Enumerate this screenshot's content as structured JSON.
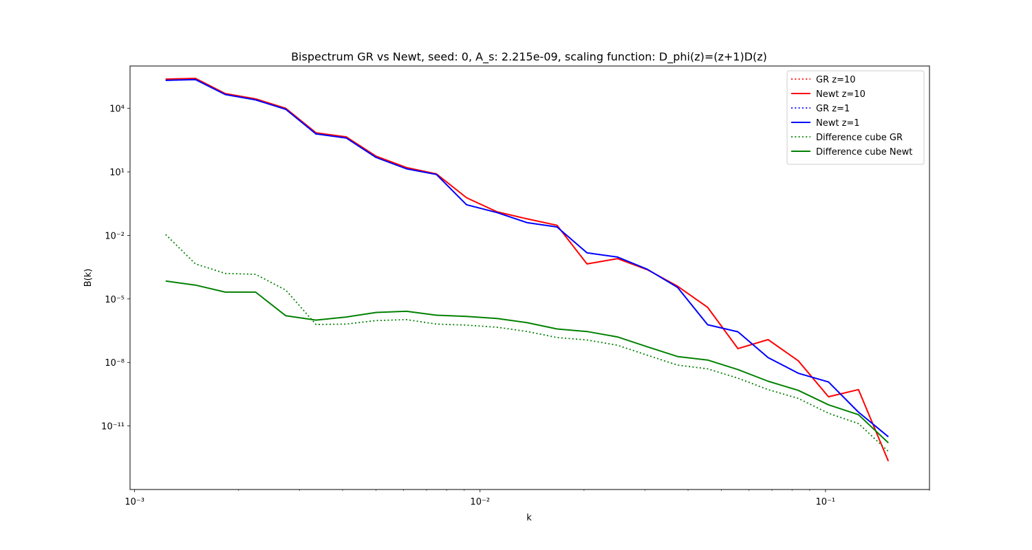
{
  "chart_data": {
    "type": "line",
    "title": "Bispectrum GR vs Newt, seed: 0, A_s: 2.215e-09, scaling function: D_phi(z)=(z+1)D(z)",
    "xlabel": "k",
    "ylabel": "B(k)",
    "xscale": "log",
    "yscale": "log",
    "xlim": [
      0.00097,
      0.2
    ],
    "ylim": [
      1e-14,
      1000000.0
    ],
    "grid": false,
    "legend_position": "top-right",
    "x_ticks": [
      {
        "value": 0.001,
        "label": "10⁻³"
      },
      {
        "value": 0.01,
        "label": "10⁻²"
      },
      {
        "value": 0.1,
        "label": "10⁻¹"
      }
    ],
    "y_ticks": [
      {
        "value": 10000.0,
        "label": "10⁴"
      },
      {
        "value": 10.0,
        "label": "10¹"
      },
      {
        "value": 0.01,
        "label": "10⁻²"
      },
      {
        "value": 1e-05,
        "label": "10⁻⁵"
      },
      {
        "value": 1e-08,
        "label": "10⁻⁸"
      },
      {
        "value": 1e-11,
        "label": "10⁻¹¹"
      }
    ],
    "x": [
      0.00123,
      0.0015,
      0.00183,
      0.00224,
      0.00274,
      0.00335,
      0.0041,
      0.005,
      0.00612,
      0.00748,
      0.00914,
      0.0112,
      0.0137,
      0.0167,
      0.0204,
      0.025,
      0.0305,
      0.0373,
      0.0456,
      0.0558,
      0.0682,
      0.0834,
      0.102,
      0.1246,
      0.152
    ],
    "series": [
      {
        "name": "GR z=10",
        "color": "#ff0000",
        "style": "dotted",
        "values": [
          240000.0,
          260000.0,
          50000.0,
          28000.0,
          10000.0,
          700,
          450,
          55,
          16,
          8,
          0.6,
          0.13,
          0.06,
          0.03,
          0.00045,
          0.0008,
          0.00024,
          4e-05,
          4e-06,
          4.5e-08,
          1.2e-07,
          1.2e-08,
          2.4e-10,
          5.2e-10,
          2.2e-13
        ]
      },
      {
        "name": "Newt z=10",
        "color": "#ff0000",
        "style": "solid",
        "values": [
          240000.0,
          260000.0,
          50000.0,
          28000.0,
          10000.0,
          700,
          450,
          55,
          16,
          8,
          0.6,
          0.13,
          0.06,
          0.03,
          0.00045,
          0.0008,
          0.00024,
          4e-05,
          4e-06,
          4.5e-08,
          1.2e-07,
          1.2e-08,
          2.4e-10,
          5.2e-10,
          2.2e-13
        ]
      },
      {
        "name": "GR z=1",
        "color": "#0000ff",
        "style": "dotted",
        "values": [
          210000.0,
          230000.0,
          45000.0,
          25000.0,
          9000.0,
          620,
          400,
          48,
          14,
          7.5,
          0.28,
          0.12,
          0.04,
          0.025,
          0.0015,
          0.00095,
          0.00025,
          3.5e-05,
          6e-07,
          2.8e-07,
          1.7e-08,
          3.1e-09,
          1.2e-09,
          4.5e-11,
          3.1e-12
        ]
      },
      {
        "name": "Newt z=1",
        "color": "#0000ff",
        "style": "solid",
        "values": [
          210000.0,
          230000.0,
          45000.0,
          25000.0,
          9000.0,
          620,
          400,
          48,
          14,
          7.5,
          0.28,
          0.12,
          0.04,
          0.025,
          0.0015,
          0.00095,
          0.00025,
          3.5e-05,
          6e-07,
          2.8e-07,
          1.7e-08,
          3.1e-09,
          1.2e-09,
          4.5e-11,
          3.1e-12
        ]
      },
      {
        "name": "Difference cube GR",
        "color": "#008000",
        "style": "dotted",
        "values": [
          0.011,
          0.00045,
          0.00016,
          0.000145,
          2.6e-05,
          6.2e-07,
          6.5e-07,
          9.5e-07,
          1.05e-06,
          6.5e-07,
          5.8e-07,
          4.6e-07,
          2.9e-07,
          1.5e-07,
          1.15e-07,
          6.5e-08,
          2.2e-08,
          7.5e-09,
          5e-09,
          1.8e-09,
          5.2e-10,
          2e-10,
          4e-11,
          1.3e-11,
          6.3e-13
        ]
      },
      {
        "name": "Difference cube Newt",
        "color": "#008000",
        "style": "solid",
        "values": [
          7e-05,
          4.5e-05,
          2.1e-05,
          2.1e-05,
          1.6e-06,
          1e-06,
          1.4e-06,
          2.3e-06,
          2.6e-06,
          1.7e-06,
          1.5e-06,
          1.2e-06,
          7.5e-07,
          3.8e-07,
          2.9e-07,
          1.6e-07,
          5.5e-08,
          1.9e-08,
          1.3e-08,
          4.6e-09,
          1.3e-09,
          4.8e-10,
          1e-10,
          3.4e-11,
          1.6e-12
        ]
      }
    ]
  }
}
